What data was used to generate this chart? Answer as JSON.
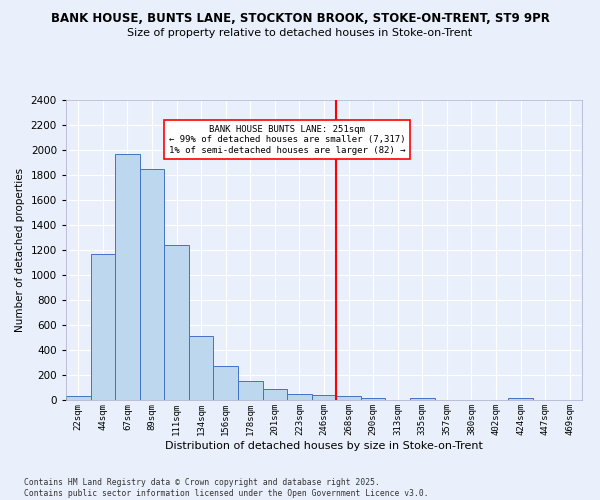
{
  "title_line1": "BANK HOUSE, BUNTS LANE, STOCKTON BROOK, STOKE-ON-TRENT, ST9 9PR",
  "title_line2": "Size of property relative to detached houses in Stoke-on-Trent",
  "xlabel": "Distribution of detached houses by size in Stoke-on-Trent",
  "ylabel": "Number of detached properties",
  "bar_labels": [
    "22sqm",
    "44sqm",
    "67sqm",
    "89sqm",
    "111sqm",
    "134sqm",
    "156sqm",
    "178sqm",
    "201sqm",
    "223sqm",
    "246sqm",
    "268sqm",
    "290sqm",
    "313sqm",
    "335sqm",
    "357sqm",
    "380sqm",
    "402sqm",
    "424sqm",
    "447sqm",
    "469sqm"
  ],
  "bar_values": [
    30,
    1170,
    1970,
    1850,
    1240,
    515,
    275,
    155,
    90,
    50,
    40,
    35,
    20,
    0,
    20,
    0,
    0,
    0,
    15,
    0,
    0
  ],
  "bar_color": "#bdd7ee",
  "bar_edge_color": "#4472c4",
  "marker_index": 10,
  "marker_color": "red",
  "annotation_title": "BANK HOUSE BUNTS LANE: 251sqm",
  "annotation_line2": "← 99% of detached houses are smaller (7,317)",
  "annotation_line3": "1% of semi-detached houses are larger (82) →",
  "ylim": [
    0,
    2400
  ],
  "yticks": [
    0,
    200,
    400,
    600,
    800,
    1000,
    1200,
    1400,
    1600,
    1800,
    2000,
    2200,
    2400
  ],
  "footer_line1": "Contains HM Land Registry data © Crown copyright and database right 2025.",
  "footer_line2": "Contains public sector information licensed under the Open Government Licence v3.0.",
  "bg_color": "#eaf0fb",
  "grid_color": "#ffffff"
}
